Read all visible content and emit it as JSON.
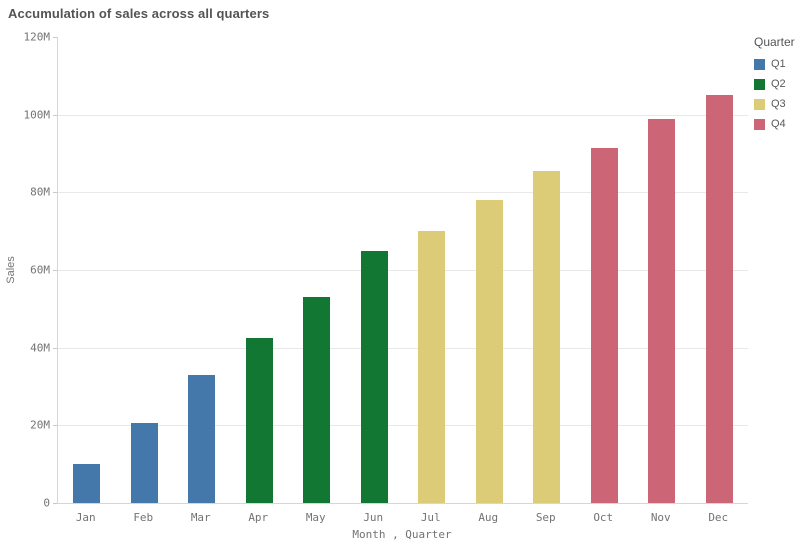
{
  "title": "Accumulation of sales across all quarters",
  "chart_data": {
    "type": "bar",
    "title": "Accumulation of sales across all quarters",
    "xlabel": "Month , Quarter",
    "ylabel": "Sales",
    "unit": "millions",
    "categories": [
      "Jan",
      "Feb",
      "Mar",
      "Apr",
      "May",
      "Jun",
      "Jul",
      "Aug",
      "Sep",
      "Oct",
      "Nov",
      "Dec"
    ],
    "values": [
      10,
      20.5,
      33,
      42.5,
      53,
      65,
      70,
      78,
      85.5,
      91.5,
      99,
      105
    ],
    "quarters": [
      "Q1",
      "Q1",
      "Q1",
      "Q2",
      "Q2",
      "Q2",
      "Q3",
      "Q3",
      "Q3",
      "Q4",
      "Q4",
      "Q4"
    ],
    "ylim": [
      0,
      120
    ],
    "yticks": [
      {
        "value": 0,
        "label": "0"
      },
      {
        "value": 20,
        "label": "20M"
      },
      {
        "value": 40,
        "label": "40M"
      },
      {
        "value": 60,
        "label": "60M"
      },
      {
        "value": 80,
        "label": "80M"
      },
      {
        "value": 100,
        "label": "100M"
      },
      {
        "value": 120,
        "label": "120M"
      }
    ],
    "grid": "horizontal",
    "legend": {
      "title": "Quarter",
      "position": "top-right",
      "entries": [
        {
          "label": "Q1",
          "color": "#4477aa"
        },
        {
          "label": "Q2",
          "color": "#117733"
        },
        {
          "label": "Q3",
          "color": "#ddcc77"
        },
        {
          "label": "Q4",
          "color": "#cc6677"
        }
      ]
    }
  },
  "colors": {
    "background": "#ffffff",
    "title_text": "#545454",
    "axis_text": "#737373",
    "gridline": "#e8e8e8",
    "axis_line": "#d6d6d6"
  }
}
